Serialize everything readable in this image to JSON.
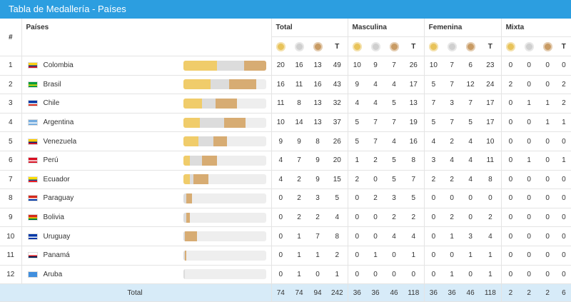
{
  "title": "Tabla de Medallería - Países",
  "headers": {
    "hash": "#",
    "paises": "Países",
    "total": "Total",
    "masculina": "Masculina",
    "femenina": "Femenina",
    "mixta": "Mixta",
    "t": "T"
  },
  "medal_icons": [
    "gold-medal-icon",
    "silver-medal-icon",
    "bronze-medal-icon"
  ],
  "colors": {
    "header": "#2c9ee0",
    "gold": "#f0cc6a",
    "silver": "#dcdcdc",
    "bronze": "#d7ac73",
    "total_row": "#d7ebf8"
  },
  "rows": [
    {
      "rank": "1",
      "country": "Colombia",
      "flag": [
        "#fcd116",
        "#003893",
        "#ce1126"
      ],
      "total": [
        "20",
        "16",
        "13",
        "49"
      ],
      "masc": [
        "10",
        "9",
        "7",
        "26"
      ],
      "fem": [
        "10",
        "7",
        "6",
        "23"
      ],
      "mix": [
        "0",
        "0",
        "0",
        "0"
      ]
    },
    {
      "rank": "2",
      "country": "Brasil",
      "flag": [
        "#009c3b",
        "#ffdf00",
        "#009c3b"
      ],
      "total": [
        "16",
        "11",
        "16",
        "43"
      ],
      "masc": [
        "9",
        "4",
        "4",
        "17"
      ],
      "fem": [
        "5",
        "7",
        "12",
        "24"
      ],
      "mix": [
        "2",
        "0",
        "0",
        "2"
      ]
    },
    {
      "rank": "3",
      "country": "Chile",
      "flag": [
        "#0039a6",
        "#ffffff",
        "#d52b1e"
      ],
      "total": [
        "11",
        "8",
        "13",
        "32"
      ],
      "masc": [
        "4",
        "4",
        "5",
        "13"
      ],
      "fem": [
        "7",
        "3",
        "7",
        "17"
      ],
      "mix": [
        "0",
        "1",
        "1",
        "2"
      ]
    },
    {
      "rank": "4",
      "country": "Argentina",
      "flag": [
        "#74acdf",
        "#ffffff",
        "#74acdf"
      ],
      "total": [
        "10",
        "14",
        "13",
        "37"
      ],
      "masc": [
        "5",
        "7",
        "7",
        "19"
      ],
      "fem": [
        "5",
        "7",
        "5",
        "17"
      ],
      "mix": [
        "0",
        "0",
        "1",
        "1"
      ]
    },
    {
      "rank": "5",
      "country": "Venezuela",
      "flag": [
        "#ffcc00",
        "#00247d",
        "#cf142b"
      ],
      "total": [
        "9",
        "9",
        "8",
        "26"
      ],
      "masc": [
        "5",
        "7",
        "4",
        "16"
      ],
      "fem": [
        "4",
        "2",
        "4",
        "10"
      ],
      "mix": [
        "0",
        "0",
        "0",
        "0"
      ]
    },
    {
      "rank": "6",
      "country": "Perú",
      "flag": [
        "#d91023",
        "#ffffff",
        "#d91023"
      ],
      "total": [
        "4",
        "7",
        "9",
        "20"
      ],
      "masc": [
        "1",
        "2",
        "5",
        "8"
      ],
      "fem": [
        "3",
        "4",
        "4",
        "11"
      ],
      "mix": [
        "0",
        "1",
        "0",
        "1"
      ]
    },
    {
      "rank": "7",
      "country": "Ecuador",
      "flag": [
        "#ffdd00",
        "#034ea2",
        "#ed1c24"
      ],
      "total": [
        "4",
        "2",
        "9",
        "15"
      ],
      "masc": [
        "2",
        "0",
        "5",
        "7"
      ],
      "fem": [
        "2",
        "2",
        "4",
        "8"
      ],
      "mix": [
        "0",
        "0",
        "0",
        "0"
      ]
    },
    {
      "rank": "8",
      "country": "Paraguay",
      "flag": [
        "#d52b1e",
        "#ffffff",
        "#0038a8"
      ],
      "total": [
        "0",
        "2",
        "3",
        "5"
      ],
      "masc": [
        "0",
        "2",
        "3",
        "5"
      ],
      "fem": [
        "0",
        "0",
        "0",
        "0"
      ],
      "mix": [
        "0",
        "0",
        "0",
        "0"
      ]
    },
    {
      "rank": "9",
      "country": "Bolivia",
      "flag": [
        "#d52b1e",
        "#f9e300",
        "#007934"
      ],
      "total": [
        "0",
        "2",
        "2",
        "4"
      ],
      "masc": [
        "0",
        "0",
        "2",
        "2"
      ],
      "fem": [
        "0",
        "2",
        "0",
        "2"
      ],
      "mix": [
        "0",
        "0",
        "0",
        "0"
      ]
    },
    {
      "rank": "10",
      "country": "Uruguay",
      "flag": [
        "#0038a8",
        "#ffffff",
        "#0038a8"
      ],
      "total": [
        "0",
        "1",
        "7",
        "8"
      ],
      "masc": [
        "0",
        "0",
        "4",
        "4"
      ],
      "fem": [
        "0",
        "1",
        "3",
        "4"
      ],
      "mix": [
        "0",
        "0",
        "0",
        "0"
      ]
    },
    {
      "rank": "11",
      "country": "Panamá",
      "flag": [
        "#ffffff",
        "#da121a",
        "#072357"
      ],
      "total": [
        "0",
        "1",
        "1",
        "2"
      ],
      "masc": [
        "0",
        "1",
        "0",
        "1"
      ],
      "fem": [
        "0",
        "0",
        "1",
        "1"
      ],
      "mix": [
        "0",
        "0",
        "0",
        "0"
      ]
    },
    {
      "rank": "12",
      "country": "Aruba",
      "flag": [
        "#418fde",
        "#418fde",
        "#418fde"
      ],
      "total": [
        "0",
        "1",
        "0",
        "1"
      ],
      "masc": [
        "0",
        "0",
        "0",
        "0"
      ],
      "fem": [
        "0",
        "1",
        "0",
        "1"
      ],
      "mix": [
        "0",
        "0",
        "0",
        "0"
      ]
    }
  ],
  "bar_scale_max": 49,
  "totals": {
    "label": "Total",
    "total": [
      "74",
      "74",
      "94",
      "242"
    ],
    "masc": [
      "36",
      "36",
      "46",
      "118"
    ],
    "fem": [
      "36",
      "36",
      "46",
      "118"
    ],
    "mix": [
      "2",
      "2",
      "2",
      "6"
    ]
  }
}
